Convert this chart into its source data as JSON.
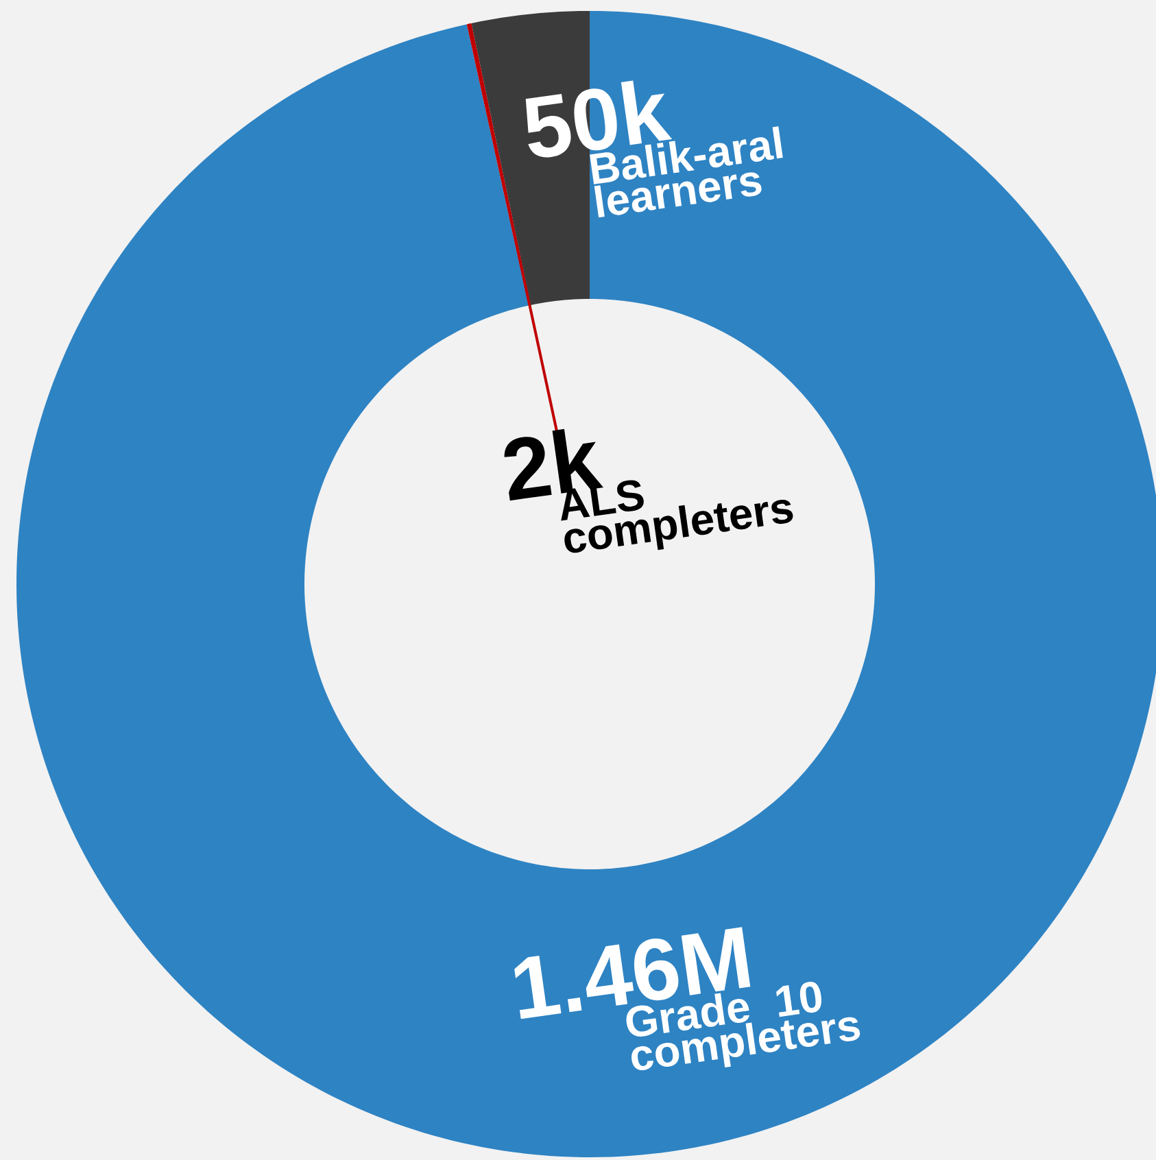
{
  "chart_data": {
    "type": "donut",
    "categories": [
      "Grade 10 completers",
      "ALS completers",
      "Balik-aral learners"
    ],
    "values": [
      1460000,
      2000,
      50000
    ],
    "value_labels": [
      "1.46M",
      "2k",
      "50k"
    ],
    "colors": [
      "#2e83c3",
      "#c00000",
      "#3b3b3b"
    ]
  }
}
